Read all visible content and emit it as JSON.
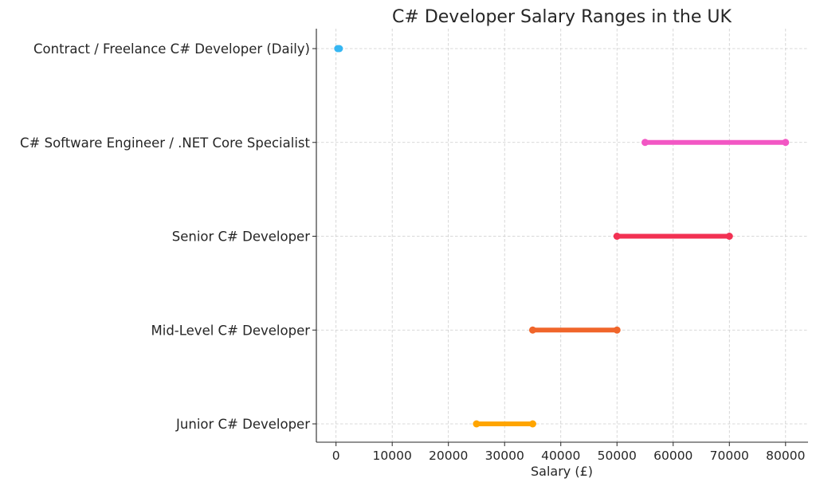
{
  "chart_data": {
    "type": "range_bar",
    "title": "C# Developer Salary Ranges in the UK",
    "xlabel": "Salary (£)",
    "ylabel": "",
    "xlim": [
      -3500,
      84000
    ],
    "xticks": [
      0,
      10000,
      20000,
      30000,
      40000,
      50000,
      60000,
      70000,
      80000
    ],
    "grid": true,
    "categories": [
      "Junior C# Developer",
      "Mid-Level C# Developer",
      "Senior C# Developer",
      "C# Software Engineer / .NET Core Specialist",
      "Contract / Freelance C# Developer (Daily)"
    ],
    "ranges": [
      {
        "category": "Junior C# Developer",
        "min": 25000,
        "max": 35000,
        "color": "#FFA500"
      },
      {
        "category": "Mid-Level C# Developer",
        "min": 35000,
        "max": 50000,
        "color": "#F0652A"
      },
      {
        "category": "Senior C# Developer",
        "min": 50000,
        "max": 70000,
        "color": "#F23153"
      },
      {
        "category": "C# Software Engineer / .NET Core Specialist",
        "min": 55000,
        "max": 80000,
        "color": "#F257C4"
      },
      {
        "category": "Contract / Freelance C# Developer (Daily)",
        "min": 300,
        "max": 600,
        "color": "#36B6F2"
      }
    ]
  }
}
